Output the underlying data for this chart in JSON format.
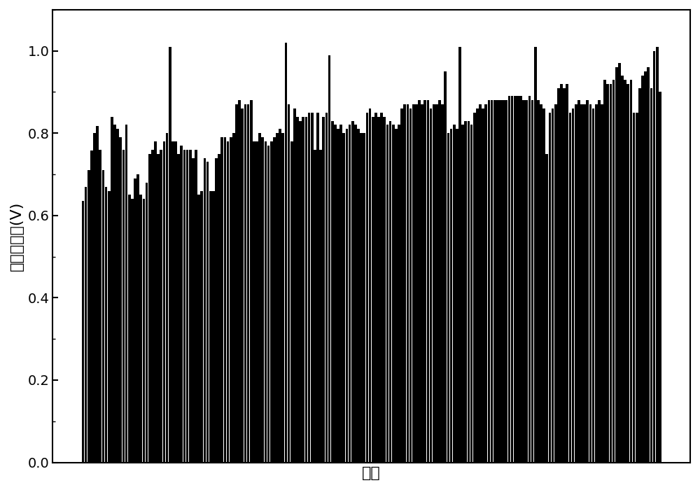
{
  "ylabel": "各单节电压(V)",
  "xlabel": "片号",
  "bar_color": "#000000",
  "ylim": [
    0.0,
    1.1
  ],
  "yticks": [
    0.0,
    0.2,
    0.4,
    0.6,
    0.8,
    1.0
  ],
  "background_color": "#ffffff",
  "ylabel_fontsize": 16,
  "xlabel_fontsize": 16,
  "tick_fontsize": 14,
  "values": [
    0.635,
    0.67,
    0.71,
    0.758,
    0.8,
    0.818,
    0.76,
    0.71,
    0.67,
    0.66,
    0.84,
    0.82,
    0.81,
    0.79,
    0.76,
    0.82,
    0.65,
    0.64,
    0.69,
    0.7,
    0.65,
    0.64,
    0.68,
    0.75,
    0.76,
    0.78,
    0.75,
    0.76,
    0.78,
    0.8,
    1.01,
    0.78,
    0.78,
    0.75,
    0.77,
    0.76,
    0.76,
    0.76,
    0.74,
    0.76,
    0.65,
    0.66,
    0.74,
    0.73,
    0.66,
    0.66,
    0.74,
    0.75,
    0.79,
    0.79,
    0.78,
    0.79,
    0.8,
    0.87,
    0.88,
    0.86,
    0.87,
    0.87,
    0.88,
    0.78,
    0.78,
    0.8,
    0.79,
    0.78,
    0.77,
    0.78,
    0.79,
    0.8,
    0.81,
    0.8,
    1.02,
    0.87,
    0.78,
    0.86,
    0.84,
    0.83,
    0.84,
    0.84,
    0.85,
    0.85,
    0.76,
    0.85,
    0.76,
    0.84,
    0.85,
    0.99,
    0.83,
    0.82,
    0.81,
    0.82,
    0.8,
    0.81,
    0.82,
    0.83,
    0.82,
    0.81,
    0.8,
    0.8,
    0.85,
    0.86,
    0.84,
    0.85,
    0.84,
    0.85,
    0.84,
    0.82,
    0.83,
    0.82,
    0.81,
    0.82,
    0.86,
    0.87,
    0.87,
    0.86,
    0.87,
    0.87,
    0.88,
    0.87,
    0.88,
    0.88,
    0.86,
    0.87,
    0.87,
    0.88,
    0.87,
    0.95,
    0.8,
    0.81,
    0.82,
    0.81,
    1.01,
    0.82,
    0.83,
    0.83,
    0.82,
    0.85,
    0.86,
    0.87,
    0.86,
    0.87,
    0.88,
    0.88,
    0.88,
    0.88,
    0.88,
    0.88,
    0.88,
    0.89,
    0.89,
    0.89,
    0.89,
    0.89,
    0.88,
    0.88,
    0.89,
    0.88,
    1.01,
    0.88,
    0.87,
    0.86,
    0.75,
    0.85,
    0.86,
    0.87,
    0.91,
    0.92,
    0.91,
    0.92,
    0.85,
    0.86,
    0.87,
    0.88,
    0.87,
    0.87,
    0.88,
    0.87,
    0.86,
    0.87,
    0.88,
    0.87,
    0.93,
    0.92,
    0.92,
    0.93,
    0.96,
    0.97,
    0.94,
    0.93,
    0.92,
    0.93,
    0.85,
    0.85,
    0.91,
    0.94,
    0.95,
    0.96,
    0.91,
    1.0,
    1.01,
    0.9
  ]
}
